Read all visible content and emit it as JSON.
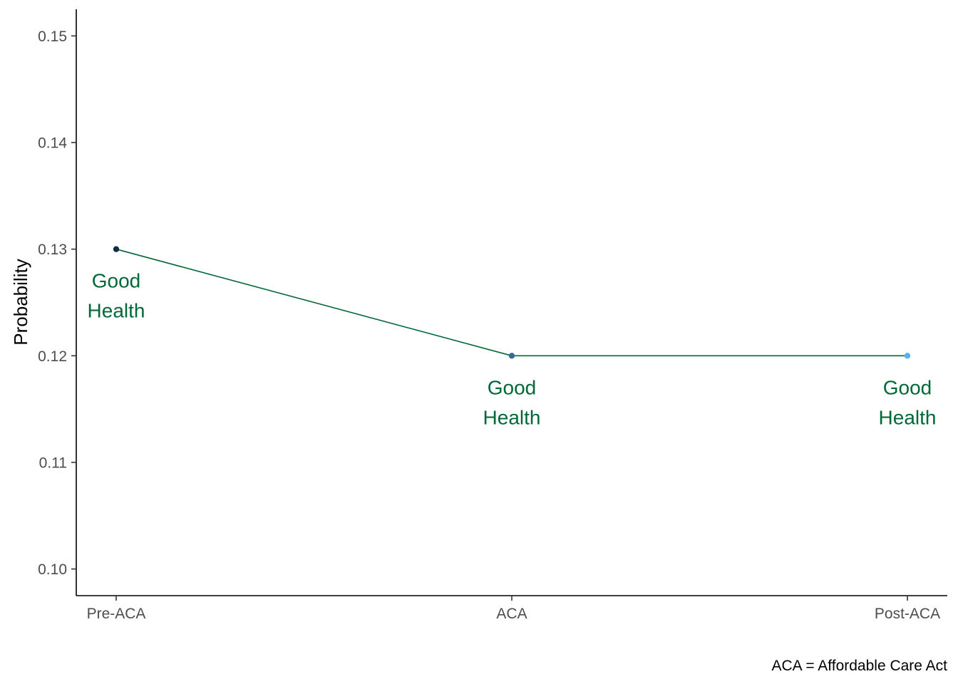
{
  "chart_data": {
    "type": "line",
    "title": "",
    "xlabel": "",
    "ylabel": "Probability",
    "categories": [
      "Pre-ACA",
      "ACA",
      "Post-ACA"
    ],
    "series": [
      {
        "values": [
          0.13,
          0.12,
          0.12
        ],
        "point_colors": [
          "#132B43",
          "#336A98",
          "#56B1F7"
        ],
        "line_color": "#006837",
        "point_labels": [
          [
            "Good",
            "Health"
          ],
          [
            "Good",
            "Health"
          ],
          [
            "Good",
            "Health"
          ]
        ]
      }
    ],
    "label_color": "#006837",
    "ylim": [
      0.0975,
      0.1525
    ],
    "yticks": [
      0.1,
      0.11,
      0.12,
      0.13,
      0.14,
      0.15
    ],
    "ytick_labels": [
      "0.10",
      "0.11",
      "0.12",
      "0.13",
      "0.14",
      "0.15"
    ],
    "grid": false,
    "legend": "none",
    "caption": "ACA = Affordable Care Act"
  }
}
